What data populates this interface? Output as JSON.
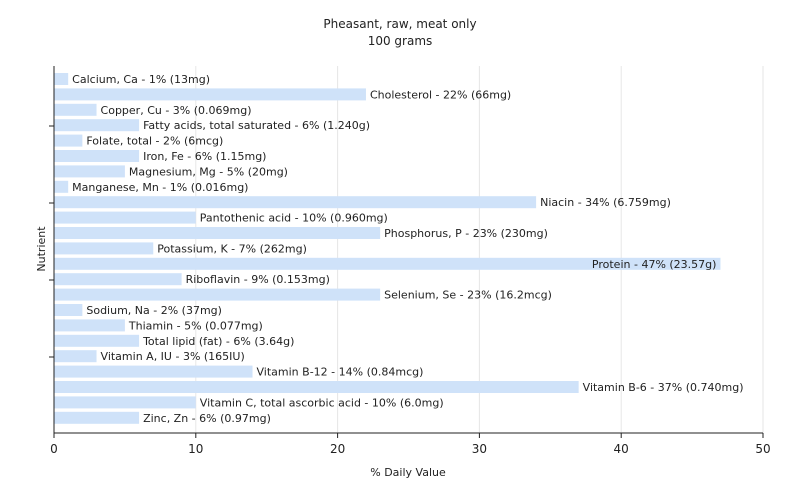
{
  "chart_data": {
    "type": "bar",
    "orientation": "horizontal",
    "title": "Pheasant, raw, meat only",
    "subtitle": "100 grams",
    "xlabel": "% Daily Value",
    "ylabel": "Nutrient",
    "xlim": [
      0,
      50
    ],
    "xticks": [
      0,
      10,
      20,
      30,
      40,
      50
    ],
    "grid": true,
    "bar_color": "#cfe2f9",
    "categories": [
      "Calcium, Ca",
      "Cholesterol",
      "Copper, Cu",
      "Fatty acids, total saturated",
      "Folate, total",
      "Iron, Fe",
      "Magnesium, Mg",
      "Manganese, Mn",
      "Niacin",
      "Pantothenic acid",
      "Phosphorus, P",
      "Potassium, K",
      "Protein",
      "Riboflavin",
      "Selenium, Se",
      "Sodium, Na",
      "Thiamin",
      "Total lipid (fat)",
      "Vitamin A, IU",
      "Vitamin B-12",
      "Vitamin B-6",
      "Vitamin C, total ascorbic acid",
      "Zinc, Zn"
    ],
    "values": [
      1,
      22,
      3,
      6,
      2,
      6,
      5,
      1,
      34,
      10,
      23,
      7,
      47,
      9,
      23,
      2,
      5,
      6,
      3,
      14,
      37,
      10,
      6
    ],
    "labels": [
      "Calcium, Ca - 1% (13mg)",
      "Cholesterol - 22% (66mg)",
      "Copper, Cu - 3% (0.069mg)",
      "Fatty acids, total saturated - 6% (1.240g)",
      "Folate, total - 2% (6mcg)",
      "Iron, Fe - 6% (1.15mg)",
      "Magnesium, Mg - 5% (20mg)",
      "Manganese, Mn - 1% (0.016mg)",
      "Niacin - 34% (6.759mg)",
      "Pantothenic acid - 10% (0.960mg)",
      "Phosphorus, P - 23% (230mg)",
      "Potassium, K - 7% (262mg)",
      "Protein - 47% (23.57g)",
      "Riboflavin - 9% (0.153mg)",
      "Selenium, Se - 23% (16.2mcg)",
      "Sodium, Na - 2% (37mg)",
      "Thiamin - 5% (0.077mg)",
      "Total lipid (fat) - 6% (3.64g)",
      "Vitamin A, IU - 3% (165IU)",
      "Vitamin B-12 - 14% (0.84mcg)",
      "Vitamin B-6 - 37% (0.740mg)",
      "Vitamin C, total ascorbic acid - 10% (6.0mg)",
      "Zinc, Zn - 6% (0.97mg)"
    ]
  }
}
